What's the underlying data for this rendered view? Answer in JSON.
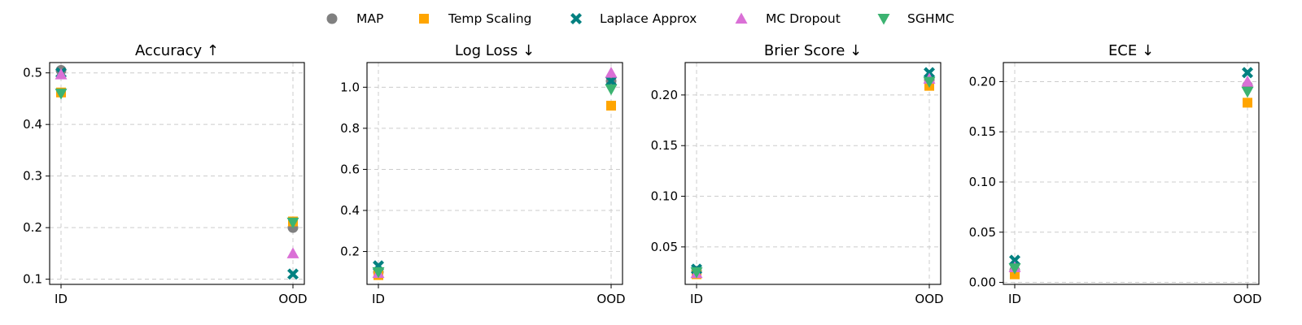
{
  "legend": [
    {
      "name": "MAP",
      "color": "#808080",
      "marker": "circle"
    },
    {
      "name": "Temp Scaling",
      "color": "#FFA500",
      "marker": "square"
    },
    {
      "name": "Laplace Approx",
      "color": "#008080",
      "marker": "x"
    },
    {
      "name": "MC Dropout",
      "color": "#DA70D6",
      "marker": "triangle-up"
    },
    {
      "name": "SGHMC",
      "color": "#3CB371",
      "marker": "triangle-down"
    }
  ],
  "chart_data": [
    {
      "type": "scatter",
      "title": "Accuracy ↑",
      "categories": [
        "ID",
        "OOD"
      ],
      "ylim": [
        0.09,
        0.52
      ],
      "yticks": [
        0.1,
        0.2,
        0.3,
        0.4,
        0.5
      ],
      "ytick_labels": [
        "0.1",
        "0.2",
        "0.3",
        "0.4",
        "0.5"
      ],
      "grid": true,
      "series": [
        {
          "name": "MAP",
          "values": [
            0.505,
            0.2
          ]
        },
        {
          "name": "Temp Scaling",
          "values": [
            0.462,
            0.212
          ]
        },
        {
          "name": "Laplace Approx",
          "values": [
            0.5,
            0.11
          ]
        },
        {
          "name": "MC Dropout",
          "values": [
            0.497,
            0.15
          ]
        },
        {
          "name": "SGHMC",
          "values": [
            0.46,
            0.21
          ]
        }
      ]
    },
    {
      "type": "scatter",
      "title": "Log Loss ↓",
      "categories": [
        "ID",
        "OOD"
      ],
      "ylim": [
        0.04,
        1.12
      ],
      "yticks": [
        0.2,
        0.4,
        0.6,
        0.8,
        1.0
      ],
      "ytick_labels": [
        "0.2",
        "0.4",
        "0.6",
        "0.8",
        "1.0"
      ],
      "grid": true,
      "series": [
        {
          "name": "MAP",
          "values": [
            0.1,
            1.03
          ]
        },
        {
          "name": "Temp Scaling",
          "values": [
            0.085,
            0.91
          ]
        },
        {
          "name": "Laplace Approx",
          "values": [
            0.13,
            1.03
          ]
        },
        {
          "name": "MC Dropout",
          "values": [
            0.095,
            1.07
          ]
        },
        {
          "name": "SGHMC",
          "values": [
            0.1,
            0.99
          ]
        }
      ]
    },
    {
      "type": "scatter",
      "title": "Brier Score ↓",
      "categories": [
        "ID",
        "OOD"
      ],
      "ylim": [
        0.013,
        0.232
      ],
      "yticks": [
        0.05,
        0.1,
        0.15,
        0.2
      ],
      "ytick_labels": [
        "0.05",
        "0.10",
        "0.15",
        "0.20"
      ],
      "grid": true,
      "series": [
        {
          "name": "MAP",
          "values": [
            0.026,
            0.215
          ]
        },
        {
          "name": "Temp Scaling",
          "values": [
            0.023,
            0.209
          ]
        },
        {
          "name": "Laplace Approx",
          "values": [
            0.028,
            0.222
          ]
        },
        {
          "name": "MC Dropout",
          "values": [
            0.024,
            0.216
          ]
        },
        {
          "name": "SGHMC",
          "values": [
            0.025,
            0.213
          ]
        }
      ]
    },
    {
      "type": "scatter",
      "title": "ECE ↓",
      "categories": [
        "ID",
        "OOD"
      ],
      "ylim": [
        -0.002,
        0.219
      ],
      "yticks": [
        0.0,
        0.05,
        0.1,
        0.15,
        0.2
      ],
      "ytick_labels": [
        "0.00",
        "0.05",
        "0.10",
        "0.15",
        "0.20"
      ],
      "grid": true,
      "series": [
        {
          "name": "MAP",
          "values": [
            0.012,
            0.196
          ]
        },
        {
          "name": "Temp Scaling",
          "values": [
            0.008,
            0.179
          ]
        },
        {
          "name": "Laplace Approx",
          "values": [
            0.022,
            0.209
          ]
        },
        {
          "name": "MC Dropout",
          "values": [
            0.015,
            0.2
          ]
        },
        {
          "name": "SGHMC",
          "values": [
            0.014,
            0.19
          ]
        }
      ]
    }
  ]
}
